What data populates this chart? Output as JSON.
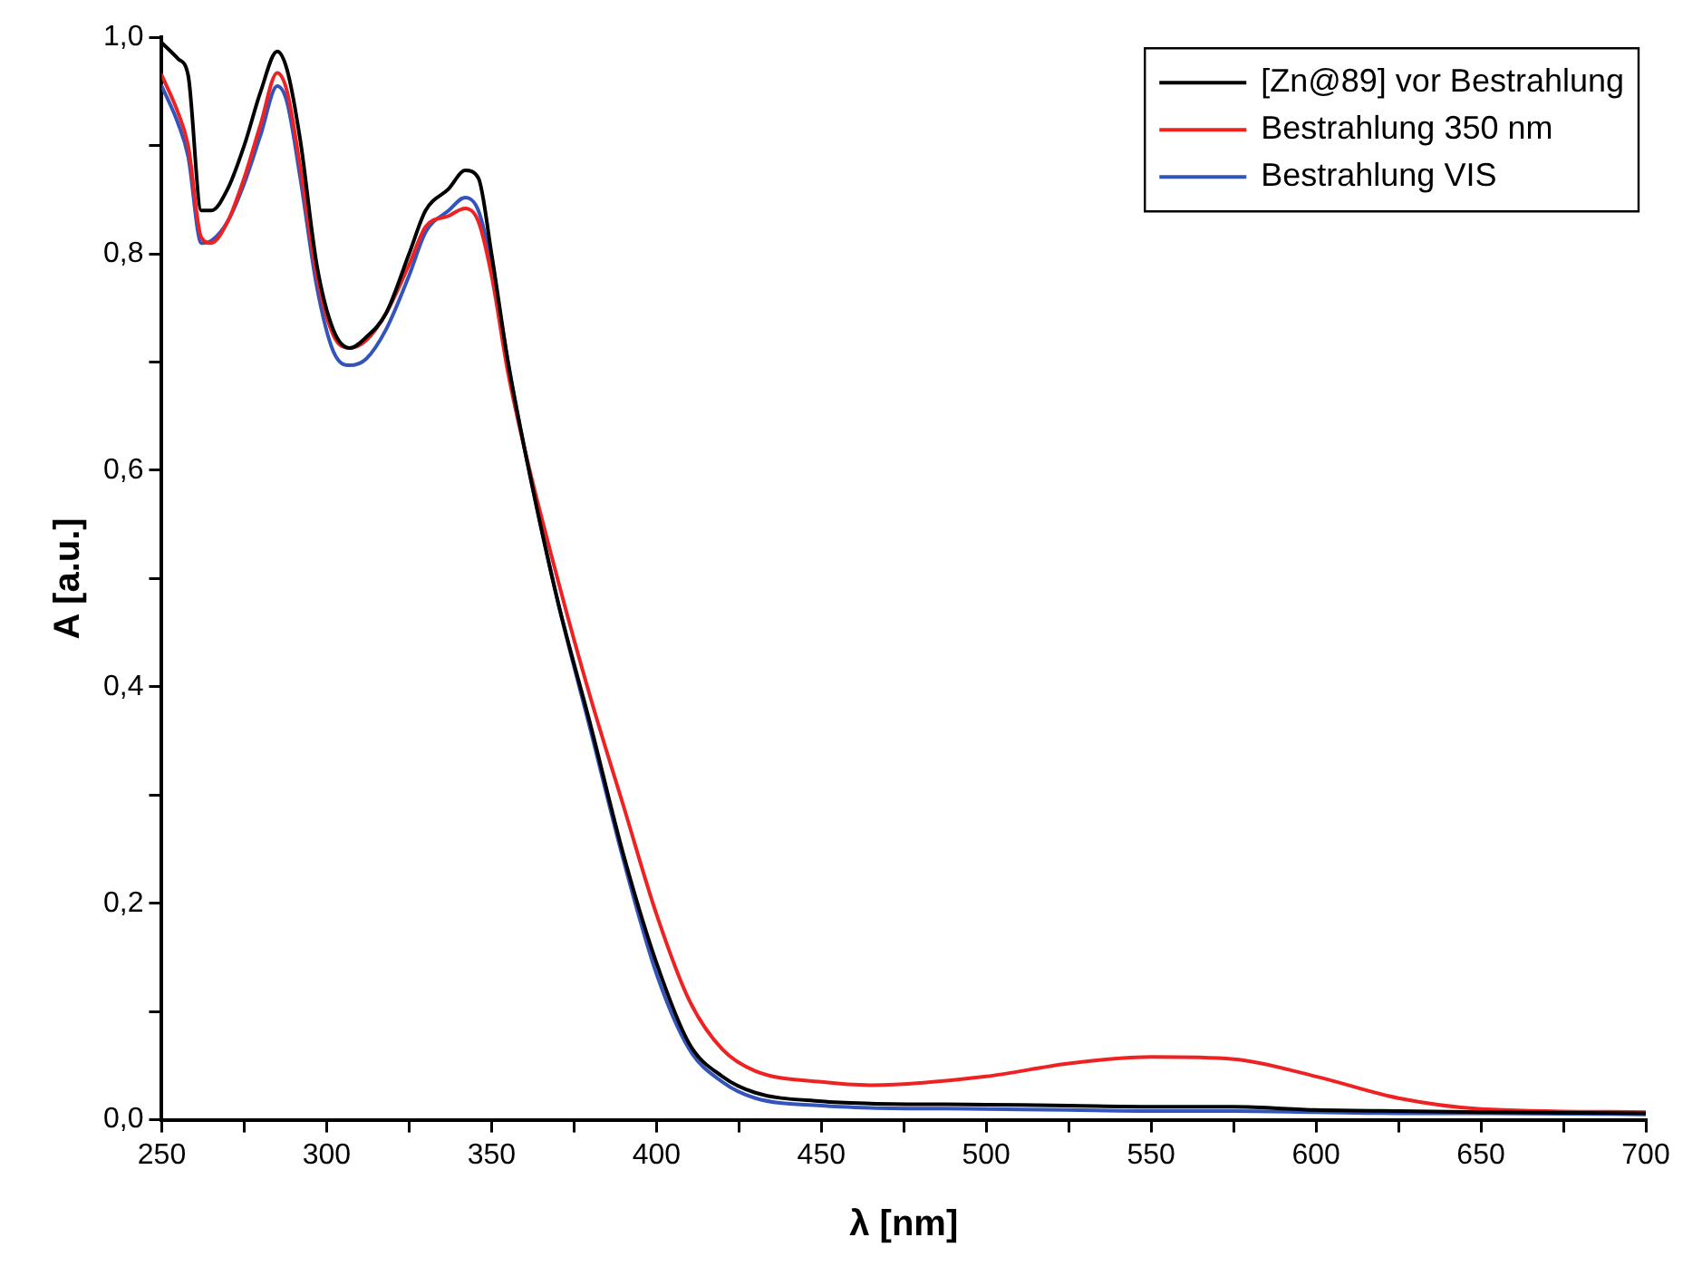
{
  "chart_data": {
    "type": "line",
    "xlabel": "λ [nm]",
    "ylabel": "A [a.u.]",
    "xlim": [
      250,
      700
    ],
    "xticks": [
      250,
      {
        "value": 275,
        "label": null
      },
      300,
      {
        "value": 325,
        "label": null
      },
      350,
      {
        "value": 375,
        "label": null
      },
      400,
      {
        "value": 425,
        "label": null
      },
      450,
      {
        "value": 475,
        "label": null
      },
      500,
      {
        "value": 525,
        "label": null
      },
      550,
      {
        "value": 575,
        "label": null
      },
      600,
      {
        "value": 625,
        "label": null
      },
      650,
      {
        "value": 675,
        "label": null
      },
      700
    ],
    "ylim": [
      0,
      1.0
    ],
    "yticks": [
      {
        "value": 0,
        "label": "0,0"
      },
      {
        "value": 0.1,
        "label": null
      },
      {
        "value": 0.2,
        "label": "0,2"
      },
      {
        "value": 0.3,
        "label": null
      },
      {
        "value": 0.4,
        "label": "0,4"
      },
      {
        "value": 0.5,
        "label": null
      },
      {
        "value": 0.6,
        "label": "0,6"
      },
      {
        "value": 0.7,
        "label": null
      },
      {
        "value": 0.8,
        "label": "0,8"
      },
      {
        "value": 0.9,
        "label": null
      },
      {
        "value": 1.0,
        "label": "1,0"
      }
    ],
    "x": [
      250,
      255,
      258,
      262,
      265,
      270,
      275,
      280,
      285,
      288,
      292,
      297,
      302,
      307,
      312,
      318,
      325,
      330,
      337,
      342,
      346,
      350,
      355,
      360,
      370,
      380,
      390,
      400,
      410,
      420,
      430,
      450,
      465,
      500,
      525,
      550,
      575,
      600,
      625,
      650,
      700
    ],
    "legend": "top right",
    "grid": false,
    "marker": "none",
    "line_style": "solid",
    "series": [
      {
        "name": "[Zn@89] vor Bestrahlung",
        "color": "#000000",
        "values": [
          0.995,
          0.98,
          0.965,
          0.84,
          0.84,
          0.86,
          0.9,
          0.95,
          0.987,
          0.97,
          0.905,
          0.79,
          0.73,
          0.713,
          0.723,
          0.745,
          0.8,
          0.84,
          0.86,
          0.877,
          0.87,
          0.8,
          0.7,
          0.62,
          0.48,
          0.365,
          0.245,
          0.145,
          0.07,
          0.04,
          0.025,
          0.017,
          0.015,
          0.014,
          0.013,
          0.012,
          0.012,
          0.009,
          0.008,
          0.007,
          0.006
        ]
      },
      {
        "name": "Bestrahlung 350 nm",
        "color": "#ee2222",
        "values": [
          0.965,
          0.93,
          0.9,
          0.815,
          0.81,
          0.83,
          0.87,
          0.92,
          0.967,
          0.95,
          0.88,
          0.78,
          0.725,
          0.713,
          0.72,
          0.745,
          0.79,
          0.825,
          0.835,
          0.842,
          0.83,
          0.78,
          0.69,
          0.62,
          0.5,
          0.39,
          0.29,
          0.19,
          0.11,
          0.065,
          0.045,
          0.035,
          0.032,
          0.04,
          0.052,
          0.058,
          0.056,
          0.04,
          0.02,
          0.01,
          0.007
        ]
      },
      {
        "name": "Bestrahlung VIS",
        "color": "#3355bb",
        "values": [
          0.955,
          0.92,
          0.89,
          0.81,
          0.812,
          0.83,
          0.865,
          0.91,
          0.955,
          0.94,
          0.87,
          0.77,
          0.71,
          0.697,
          0.703,
          0.73,
          0.78,
          0.82,
          0.84,
          0.852,
          0.84,
          0.79,
          0.7,
          0.62,
          0.48,
          0.36,
          0.24,
          0.135,
          0.065,
          0.035,
          0.02,
          0.013,
          0.011,
          0.01,
          0.009,
          0.008,
          0.008,
          0.007,
          0.006,
          0.006,
          0.005
        ]
      }
    ]
  }
}
